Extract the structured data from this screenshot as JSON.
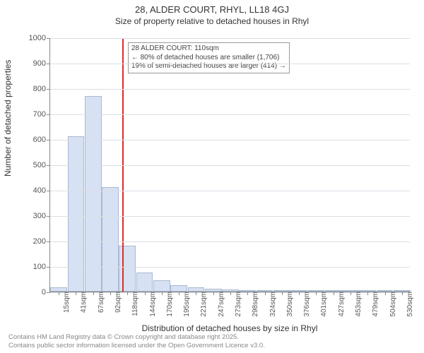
{
  "title": "28, ALDER COURT, RHYL, LL18 4GJ",
  "subtitle": "Size of property relative to detached houses in Rhyl",
  "ylabel": "Number of detached properties",
  "xlabel": "Distribution of detached houses by size in Rhyl",
  "chart": {
    "type": "histogram",
    "ylim": [
      0,
      1000
    ],
    "ytick_step": 100,
    "background_color": "#ffffff",
    "grid_color": "#d9dfe6",
    "axis_color": "#888888",
    "bar_fill": "#d7e1f4",
    "bar_stroke": "#aab8d0",
    "bar_width_ratio": 0.98,
    "x_categories": [
      "15sqm",
      "41sqm",
      "67sqm",
      "92sqm",
      "118sqm",
      "144sqm",
      "170sqm",
      "195sqm",
      "221sqm",
      "247sqm",
      "273sqm",
      "298sqm",
      "324sqm",
      "350sqm",
      "376sqm",
      "401sqm",
      "427sqm",
      "453sqm",
      "479sqm",
      "504sqm",
      "530sqm"
    ],
    "values": [
      18,
      610,
      770,
      410,
      180,
      75,
      45,
      25,
      18,
      10,
      8,
      0,
      0,
      0,
      0,
      0,
      0,
      0,
      0,
      0,
      0
    ],
    "marker": {
      "x_value_sqm": 110,
      "color": "#d9302c",
      "width": 2
    },
    "annotation": {
      "lines": [
        "28 ALDER COURT: 110sqm",
        "← 80% of detached houses are smaller (1,706)",
        "19% of semi-detached houses are larger (414) →"
      ],
      "border_color": "#999999",
      "font_size": 10
    }
  },
  "footer": {
    "line1": "Contains HM Land Registry data © Crown copyright and database right 2025.",
    "line2": "Contains public sector information licensed under the Open Government Licence v3.0."
  }
}
